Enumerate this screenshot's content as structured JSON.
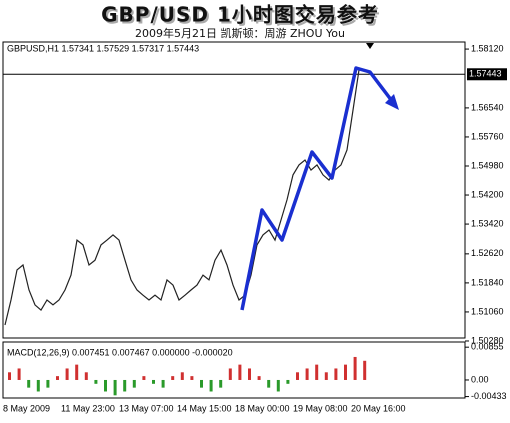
{
  "chart_data": {
    "type": "line",
    "title": "GBP/USD 1小时图交易参考",
    "subtitle": "2009年5月21日  凯斯顿：周游 ZHOU You",
    "header": "GBPUSD,H1  1.57341 1.57529 1.57317 1.57443",
    "last_price": 1.57443,
    "color": "#222222",
    "values": [
      1.5071,
      1.5138,
      1.5219,
      1.5232,
      1.5165,
      1.5125,
      1.5111,
      1.5138,
      1.5125,
      1.5138,
      1.5165,
      1.5205,
      1.5299,
      1.5286,
      1.5232,
      1.5245,
      1.5286,
      1.5299,
      1.5313,
      1.5299,
      1.5245,
      1.5192,
      1.5165,
      1.5151,
      1.5138,
      1.5151,
      1.5138,
      1.5192,
      1.5178,
      1.5138,
      1.5151,
      1.5165,
      1.5178,
      1.5205,
      1.5192,
      1.5245,
      1.5272,
      1.5232,
      1.5178,
      1.5138,
      1.5151,
      1.5205,
      1.5286,
      1.5313,
      1.5326,
      1.5299,
      1.5353,
      1.5407,
      1.5474,
      1.5501,
      1.5514,
      1.5487,
      1.5501,
      1.5474,
      1.546,
      1.5487,
      1.5501,
      1.5541,
      1.5648,
      1.5756,
      1.5756,
      1.5744
    ],
    "ylim": [
      1.5036,
      1.5831
    ],
    "yticks": [
      {
        "value": 1.5812,
        "label": "1.58120"
      },
      {
        "value": 1.5654,
        "label": "1.56540"
      },
      {
        "value": 1.5576,
        "label": "1.55760"
      },
      {
        "value": 1.5498,
        "label": "1.54980"
      },
      {
        "value": 1.542,
        "label": "1.54200"
      },
      {
        "value": 1.5342,
        "label": "1.53420"
      },
      {
        "value": 1.5262,
        "label": "1.52620"
      },
      {
        "value": 1.5184,
        "label": "1.51840"
      },
      {
        "value": 1.5106,
        "label": "1.51060"
      },
      {
        "value": 1.5028,
        "label": "1.50280"
      }
    ],
    "xlabels": [
      "8 May 2009",
      "11 May 23:00",
      "13 May 07:00",
      "14 May 15:00",
      "18 May 00:00",
      "19 May 08:00",
      "20 May 16:00"
    ],
    "macd": {
      "type": "bar",
      "title": "MACD(12,26,9) 0.007451 0.007467 0.000000 -0.000020",
      "pos_color": "#d03030",
      "neg_color": "#2a9a2a",
      "values": [
        0.002,
        0.003,
        -0.002,
        -0.003,
        -0.002,
        0.001,
        0.003,
        0.004,
        0.002,
        -0.001,
        -0.003,
        -0.004,
        -0.003,
        -0.002,
        0.001,
        -0.001,
        -0.002,
        0.001,
        0.002,
        0.001,
        -0.002,
        -0.003,
        -0.002,
        0.003,
        0.004,
        0.003,
        0.001,
        -0.002,
        -0.003,
        -0.001,
        0.002,
        0.003,
        0.004,
        0.002,
        0.003,
        0.004,
        0.006,
        0.005
      ],
      "ylim": [
        -0.0047,
        0.0099
      ],
      "yticks": [
        0.00855,
        {
          "value": 0,
          "label": "0.00"
        },
        -0.00433
      ]
    }
  }
}
